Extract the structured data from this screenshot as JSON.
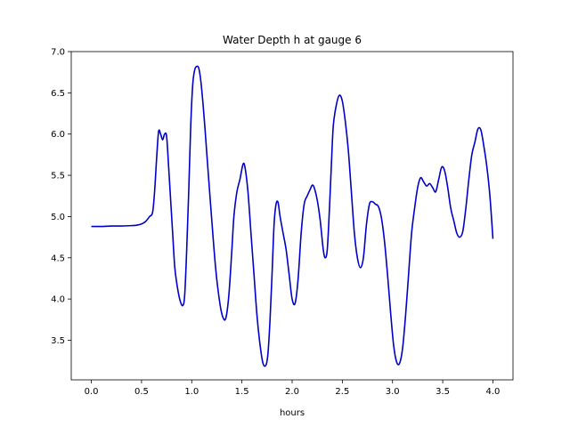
{
  "chart_data": {
    "type": "line",
    "title": "Water Depth h at gauge 6",
    "xlabel": "hours",
    "ylabel": "",
    "xlim": [
      -0.2,
      4.2
    ],
    "ylim": [
      3.02,
      7.0
    ],
    "xticks": [
      0.0,
      0.5,
      1.0,
      1.5,
      2.0,
      2.5,
      3.0,
      3.5,
      4.0
    ],
    "xtick_labels": [
      "0.0",
      "0.5",
      "1.0",
      "1.5",
      "2.0",
      "2.5",
      "3.0",
      "3.5",
      "4.0"
    ],
    "yticks": [
      3.5,
      4.0,
      4.5,
      5.0,
      5.5,
      6.0,
      6.5,
      7.0
    ],
    "ytick_labels": [
      "3.5",
      "4.0",
      "4.5",
      "5.0",
      "5.5",
      "6.0",
      "6.5",
      "7.0"
    ],
    "grid": false,
    "series": [
      {
        "color": "#0000cc",
        "x": [
          0.0,
          0.1,
          0.2,
          0.3,
          0.4,
          0.45,
          0.5,
          0.54,
          0.58,
          0.61,
          0.63,
          0.65,
          0.67,
          0.69,
          0.71,
          0.73,
          0.75,
          0.77,
          0.79,
          0.81,
          0.83,
          0.85,
          0.88,
          0.91,
          0.93,
          0.95,
          0.97,
          0.99,
          1.01,
          1.03,
          1.05,
          1.07,
          1.09,
          1.11,
          1.13,
          1.16,
          1.2,
          1.24,
          1.28,
          1.31,
          1.34,
          1.37,
          1.4,
          1.42,
          1.45,
          1.48,
          1.51,
          1.53,
          1.56,
          1.59,
          1.62,
          1.65,
          1.68,
          1.71,
          1.74,
          1.76,
          1.78,
          1.8,
          1.82,
          1.84,
          1.86,
          1.88,
          1.91,
          1.94,
          1.97,
          2.0,
          2.03,
          2.06,
          2.09,
          2.12,
          2.15,
          2.18,
          2.2,
          2.22,
          2.25,
          2.28,
          2.31,
          2.33,
          2.35,
          2.37,
          2.39,
          2.41,
          2.44,
          2.47,
          2.5,
          2.53,
          2.56,
          2.59,
          2.62,
          2.65,
          2.68,
          2.71,
          2.74,
          2.77,
          2.8,
          2.83,
          2.86,
          2.89,
          2.92,
          2.95,
          2.98,
          3.01,
          3.04,
          3.07,
          3.1,
          3.13,
          3.16,
          3.19,
          3.22,
          3.25,
          3.28,
          3.31,
          3.34,
          3.37,
          3.4,
          3.43,
          3.46,
          3.49,
          3.52,
          3.55,
          3.58,
          3.61,
          3.64,
          3.67,
          3.7,
          3.73,
          3.76,
          3.79,
          3.82,
          3.85,
          3.88,
          3.91,
          3.94,
          3.97,
          4.0
        ],
        "y": [
          4.88,
          4.88,
          4.885,
          4.885,
          4.89,
          4.895,
          4.91,
          4.94,
          5.0,
          5.05,
          5.3,
          5.7,
          6.03,
          6.0,
          5.93,
          6.0,
          5.97,
          5.6,
          5.2,
          4.8,
          4.4,
          4.2,
          4.0,
          3.92,
          4.05,
          4.6,
          5.3,
          6.1,
          6.6,
          6.78,
          6.82,
          6.8,
          6.65,
          6.4,
          6.1,
          5.6,
          4.95,
          4.35,
          3.95,
          3.78,
          3.77,
          4.05,
          4.6,
          5.0,
          5.3,
          5.45,
          5.63,
          5.6,
          5.3,
          4.8,
          4.3,
          3.8,
          3.45,
          3.22,
          3.2,
          3.35,
          3.75,
          4.3,
          4.9,
          5.15,
          5.17,
          5.0,
          4.8,
          4.6,
          4.3,
          4.0,
          3.95,
          4.25,
          4.8,
          5.15,
          5.25,
          5.33,
          5.38,
          5.35,
          5.2,
          4.95,
          4.6,
          4.5,
          4.6,
          5.05,
          5.6,
          6.1,
          6.35,
          6.47,
          6.4,
          6.15,
          5.8,
          5.3,
          4.8,
          4.5,
          4.38,
          4.5,
          4.9,
          5.15,
          5.18,
          5.15,
          5.12,
          4.98,
          4.7,
          4.3,
          3.85,
          3.45,
          3.24,
          3.22,
          3.4,
          3.8,
          4.3,
          4.8,
          5.1,
          5.35,
          5.47,
          5.42,
          5.37,
          5.4,
          5.35,
          5.3,
          5.45,
          5.6,
          5.55,
          5.35,
          5.1,
          4.95,
          4.8,
          4.75,
          4.82,
          5.1,
          5.45,
          5.75,
          5.9,
          6.06,
          6.05,
          5.85,
          5.6,
          5.25,
          4.73
        ]
      }
    ]
  }
}
